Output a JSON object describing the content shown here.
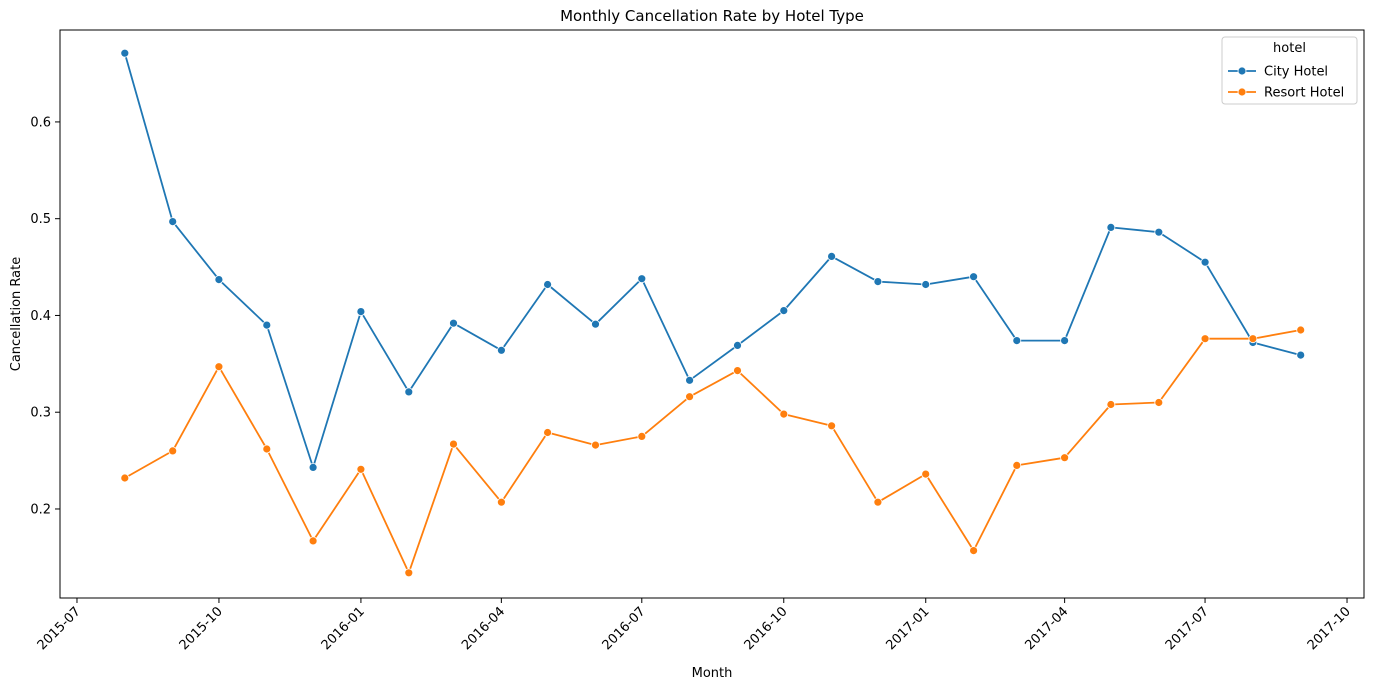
{
  "chart_data": {
    "type": "line",
    "title": "Monthly Cancellation Rate by Hotel Type",
    "xlabel": "Month",
    "ylabel": "Cancellation Rate",
    "x_ticks": [
      "2015-07",
      "2015-10",
      "2016-01",
      "2016-04",
      "2016-07",
      "2016-10",
      "2017-01",
      "2017-04",
      "2017-07",
      "2017-10"
    ],
    "y_ticks": [
      "0.2",
      "0.3",
      "0.4",
      "0.5",
      "0.6"
    ],
    "xlim": [
      "2015-06-20",
      "2017-10-12"
    ],
    "ylim": [
      0.108,
      0.695
    ],
    "grid": false,
    "legend": {
      "title": "hotel",
      "placement": "top-right"
    },
    "x": [
      "2015-08",
      "2015-09",
      "2015-10",
      "2015-11",
      "2015-12",
      "2016-01",
      "2016-02",
      "2016-03",
      "2016-04",
      "2016-05",
      "2016-06",
      "2016-07",
      "2016-08",
      "2016-09",
      "2016-10",
      "2016-11",
      "2016-12",
      "2017-01",
      "2017-02",
      "2017-03",
      "2017-04",
      "2017-05",
      "2017-06",
      "2017-07",
      "2017-08",
      "2017-09"
    ],
    "series": [
      {
        "name": "City Hotel",
        "color": "#1f77b4",
        "values": [
          0.671,
          0.497,
          0.437,
          0.39,
          0.243,
          0.404,
          0.321,
          0.392,
          0.364,
          0.432,
          0.391,
          0.438,
          0.333,
          0.369,
          0.405,
          0.461,
          0.435,
          0.432,
          0.44,
          0.374,
          0.374,
          0.491,
          0.486,
          0.455,
          0.372,
          0.359
        ]
      },
      {
        "name": "Resort Hotel",
        "color": "#ff7f0e",
        "values": [
          0.232,
          0.26,
          0.347,
          0.262,
          0.167,
          0.241,
          0.134,
          0.267,
          0.207,
          0.279,
          0.266,
          0.275,
          0.316,
          0.343,
          0.298,
          0.286,
          0.207,
          0.236,
          0.157,
          0.245,
          0.253,
          0.308,
          0.31,
          0.376,
          0.376,
          0.385
        ]
      }
    ]
  }
}
